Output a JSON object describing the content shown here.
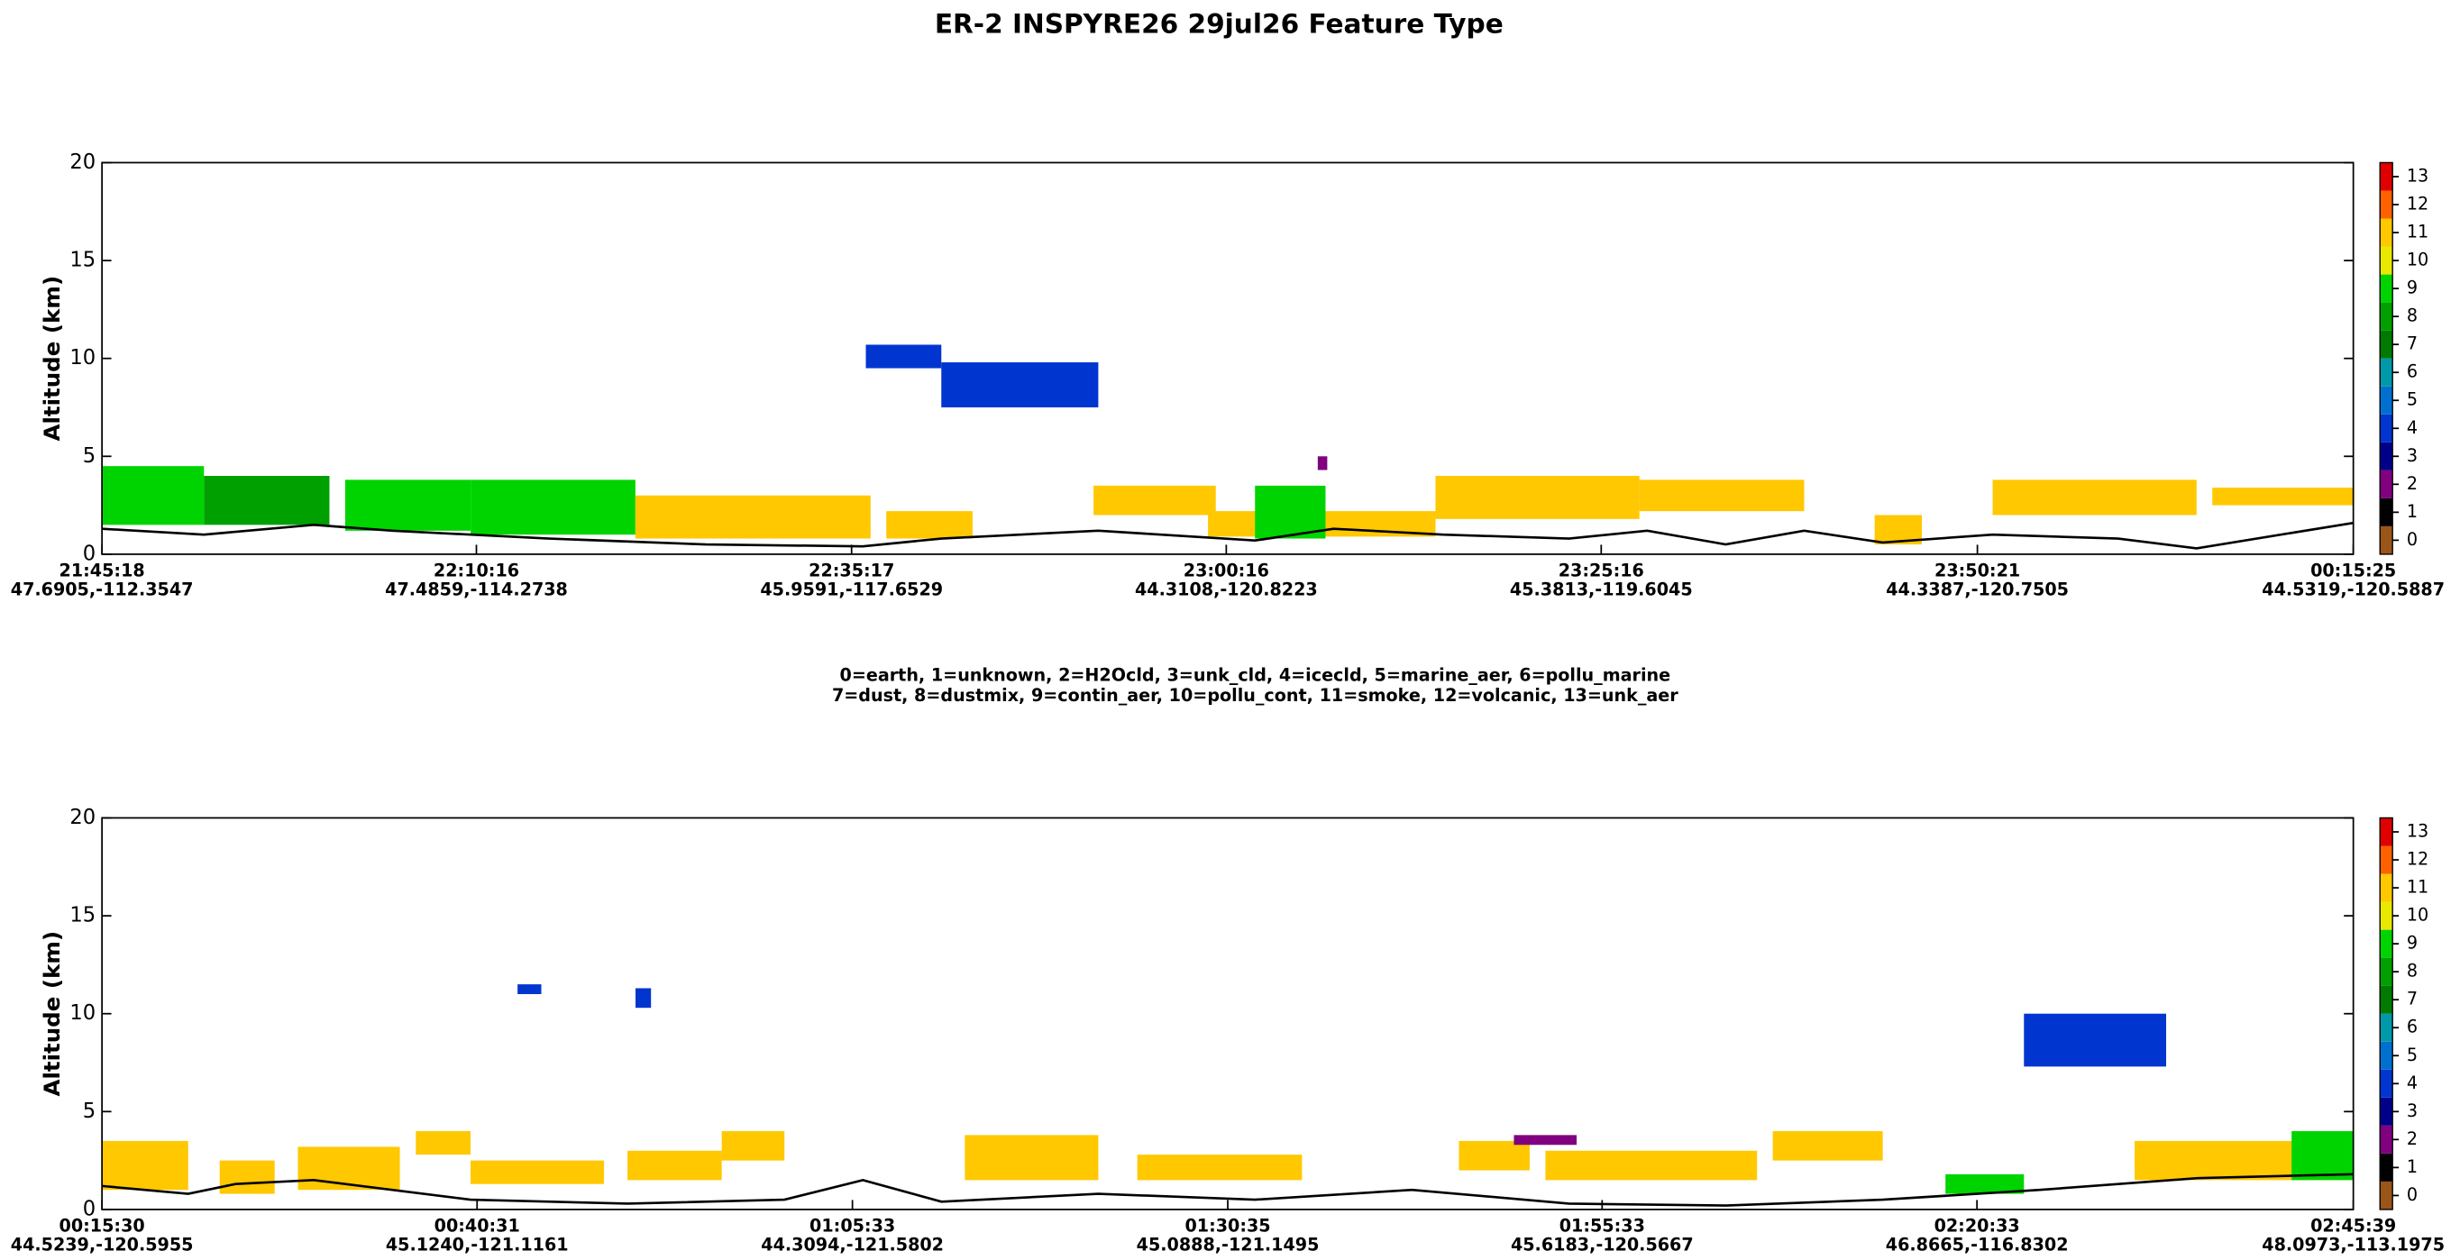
{
  "title": "ER-2  INSPYRE26  29jul26  Feature Type",
  "legend_lines": [
    "0=earth, 1=unknown, 2=H2Ocld, 3=unk_cld, 4=icecld, 5=marine_aer, 6=pollu_marine",
    "7=dust, 8=dustmix, 9=contin_aer, 10=pollu_cont, 11=smoke, 12=volcanic, 13=unk_aer"
  ],
  "chart_data": [
    {
      "type": "curtain",
      "ylabel": "Altitude (km)",
      "ylim": [
        0,
        20
      ],
      "yticks": [
        0,
        5,
        10,
        15,
        20
      ],
      "xlim": [
        78318,
        87325
      ],
      "xticks": [
        {
          "value": 78318,
          "label": "21:45:18"
        },
        {
          "value": 79816,
          "label": "22:10:16"
        },
        {
          "value": 81317,
          "label": "22:35:17"
        },
        {
          "value": 82816,
          "label": "23:00:16"
        },
        {
          "value": 84316,
          "label": "23:25:16"
        },
        {
          "value": 85821,
          "label": "23:50:21"
        },
        {
          "value": 87325,
          "label": "00:15:25"
        }
      ],
      "xtick_locations": [
        "47.6905,-112.3547",
        "47.4859,-114.2738",
        "45.9591,-117.6529",
        "44.3108,-120.8223",
        "45.3813,-119.6045",
        "44.3387,-120.7505",
        "44.5319,-120.5887"
      ],
      "colorbar": {
        "ticks": [
          0,
          1,
          2,
          3,
          4,
          5,
          6,
          7,
          8,
          9,
          10,
          11,
          12,
          13
        ],
        "colors": [
          "#9a5518",
          "#000000",
          "#800080",
          "#00008b",
          "#0035d0",
          "#0070d0",
          "#0099aa",
          "#007a00",
          "#00a000",
          "#00d400",
          "#e8e800",
          "#ffc800",
          "#ff6000",
          "#e00000"
        ]
      },
      "features": [
        {
          "class": 9,
          "x": [
            78318,
            78726
          ],
          "y": [
            1.5,
            4.5
          ]
        },
        {
          "class": 8,
          "x": [
            78726,
            79228
          ],
          "y": [
            1.5,
            4
          ]
        },
        {
          "class": 9,
          "x": [
            79291,
            79793
          ],
          "y": [
            1.2,
            3.8
          ]
        },
        {
          "class": 9,
          "x": [
            79793,
            80452
          ],
          "y": [
            1,
            3.8
          ]
        },
        {
          "class": 11,
          "x": [
            80452,
            81393
          ],
          "y": [
            0.8,
            3
          ]
        },
        {
          "class": 11,
          "x": [
            81456,
            81801
          ],
          "y": [
            0.8,
            2.2
          ]
        },
        {
          "class": 4,
          "x": [
            81374,
            81676
          ],
          "y": [
            9.5,
            10.7
          ]
        },
        {
          "class": 4,
          "x": [
            81676,
            82304
          ],
          "y": [
            7.5,
            9.8
          ]
        },
        {
          "class": 11,
          "x": [
            82285,
            82774
          ],
          "y": [
            2,
            3.5
          ]
        },
        {
          "class": 11,
          "x": [
            82743,
            83653
          ],
          "y": [
            0.9,
            2.2
          ]
        },
        {
          "class": 9,
          "x": [
            82931,
            83213
          ],
          "y": [
            0.8,
            3.5
          ]
        },
        {
          "class": 11,
          "x": [
            83653,
            84469
          ],
          "y": [
            1.8,
            4
          ]
        },
        {
          "class": 11,
          "x": [
            84469,
            85128
          ],
          "y": [
            2.2,
            3.8
          ]
        },
        {
          "class": 11,
          "x": [
            85410,
            85599
          ],
          "y": [
            0.5,
            2
          ]
        },
        {
          "class": 11,
          "x": [
            85882,
            86698
          ],
          "y": [
            2,
            3.8
          ]
        },
        {
          "class": 11,
          "x": [
            86761,
            87325
          ],
          "y": [
            2.5,
            3.4
          ]
        },
        {
          "class": 2,
          "x": [
            83182,
            83220
          ],
          "y": [
            4.3,
            5
          ]
        }
      ],
      "surface": {
        "x": [
          78318,
          78726,
          79165,
          79479,
          80107,
          80734,
          81362,
          81676,
          82304,
          82931,
          83245,
          83684,
          84187,
          84500,
          84814,
          85128,
          85442,
          85882,
          86384,
          86698,
          87325
        ],
        "y": [
          1.3,
          1.0,
          1.5,
          1.2,
          0.8,
          0.5,
          0.4,
          0.8,
          1.2,
          0.7,
          1.3,
          1.0,
          0.8,
          1.2,
          0.5,
          1.2,
          0.6,
          1.0,
          0.8,
          0.3,
          1.6
        ]
      }
    },
    {
      "type": "curtain",
      "ylabel": "Altitude (km)",
      "ylim": [
        0,
        20
      ],
      "yticks": [
        0,
        5,
        10,
        15,
        20
      ],
      "xlim": [
        930,
        9939
      ],
      "xticks": [
        {
          "value": 930,
          "label": "00:15:30"
        },
        {
          "value": 2431,
          "label": "00:40:31"
        },
        {
          "value": 3933,
          "label": "01:05:33"
        },
        {
          "value": 5435,
          "label": "01:30:35"
        },
        {
          "value": 6933,
          "label": "01:55:33"
        },
        {
          "value": 8433,
          "label": "02:20:33"
        },
        {
          "value": 9939,
          "label": "02:45:39"
        }
      ],
      "xtick_locations": [
        "44.5239,-120.5955",
        "45.1240,-121.1161",
        "44.3094,-121.5802",
        "45.0888,-121.1495",
        "45.6183,-120.5667",
        "46.8665,-116.8302",
        "48.0973,-113.1975"
      ],
      "colorbar": {
        "ticks": [
          0,
          1,
          2,
          3,
          4,
          5,
          6,
          7,
          8,
          9,
          10,
          11,
          12,
          13
        ],
        "colors": [
          "#9a5518",
          "#000000",
          "#800080",
          "#00008b",
          "#0035d0",
          "#0070d0",
          "#0099aa",
          "#007a00",
          "#00a000",
          "#00d400",
          "#e8e800",
          "#ffc800",
          "#ff6000",
          "#e00000"
        ]
      },
      "features": [
        {
          "class": 11,
          "x": [
            930,
            1275
          ],
          "y": [
            1,
            3.5
          ]
        },
        {
          "class": 11,
          "x": [
            1401,
            1621
          ],
          "y": [
            0.8,
            2.5
          ]
        },
        {
          "class": 11,
          "x": [
            1714,
            2122
          ],
          "y": [
            1,
            3.2
          ]
        },
        {
          "class": 11,
          "x": [
            2186,
            2405
          ],
          "y": [
            2.8,
            4
          ]
        },
        {
          "class": 11,
          "x": [
            2405,
            2939
          ],
          "y": [
            1.3,
            2.5
          ]
        },
        {
          "class": 11,
          "x": [
            3033,
            3410
          ],
          "y": [
            1.5,
            3
          ]
        },
        {
          "class": 11,
          "x": [
            3410,
            3661
          ],
          "y": [
            2.5,
            4
          ]
        },
        {
          "class": 11,
          "x": [
            4383,
            4917
          ],
          "y": [
            1.5,
            3.8
          ]
        },
        {
          "class": 11,
          "x": [
            5073,
            5732
          ],
          "y": [
            1.5,
            2.8
          ]
        },
        {
          "class": 11,
          "x": [
            6360,
            6643
          ],
          "y": [
            2,
            3.5
          ]
        },
        {
          "class": 11,
          "x": [
            6706,
            7553
          ],
          "y": [
            1.5,
            3
          ]
        },
        {
          "class": 11,
          "x": [
            7616,
            8056
          ],
          "y": [
            2.5,
            4
          ]
        },
        {
          "class": 11,
          "x": [
            9064,
            9939
          ],
          "y": [
            1.5,
            3.5
          ]
        },
        {
          "class": 9,
          "x": [
            9692,
            9939
          ],
          "y": [
            1.5,
            4
          ]
        },
        {
          "class": 4,
          "x": [
            2593,
            2688
          ],
          "y": [
            11,
            11.5
          ]
        },
        {
          "class": 4,
          "x": [
            3065,
            3127
          ],
          "y": [
            10.3,
            11.3
          ]
        },
        {
          "class": 4,
          "x": [
            8621,
            9190
          ],
          "y": [
            7.3,
            10
          ]
        },
        {
          "class": 9,
          "x": [
            8307,
            8621
          ],
          "y": [
            0.8,
            1.8
          ]
        },
        {
          "class": 2,
          "x": [
            6580,
            6831
          ],
          "y": [
            3.3,
            3.8
          ]
        }
      ],
      "surface": {
        "x": [
          930,
          1275,
          1464,
          1777,
          2405,
          3033,
          3661,
          3975,
          4289,
          4917,
          5544,
          6172,
          6800,
          7428,
          8056,
          8684,
          9315,
          9939
        ],
        "y": [
          1.2,
          0.8,
          1.3,
          1.5,
          0.5,
          0.3,
          0.5,
          1.5,
          0.4,
          0.8,
          0.5,
          1.0,
          0.3,
          0.2,
          0.5,
          1.0,
          1.6,
          1.8
        ]
      }
    }
  ]
}
